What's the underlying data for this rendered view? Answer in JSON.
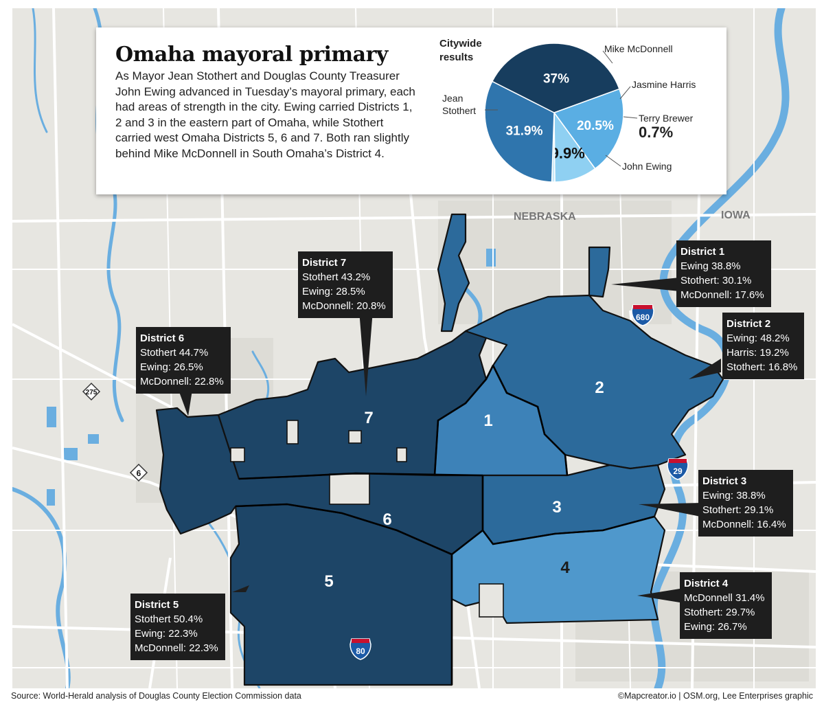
{
  "title": "Omaha mayoral primary",
  "intro": "As Mayor Jean Stothert and Douglas County Treasurer John Ewing advanced in Tuesday’s mayoral primary, each had areas of strength in the city. Ewing carried Districts 1, 2 and 3 in the eastern part of Omaha, while Stothert carried west Omaha Districts 5, 6 and 7. Both ran slightly behind Mike McDonnell in South Omaha’s District 4.",
  "pie": {
    "heading_line1": "Citywide",
    "heading_line2": "results",
    "slices": [
      {
        "name": "Mike McDonnell",
        "value": 20.5,
        "label": "20.5%",
        "color": "#5aaee3"
      },
      {
        "name": "Jasmine Harris",
        "value": 9.9,
        "label": "9.9%",
        "color": "#8fd0f2"
      },
      {
        "name": "Terry Brewer",
        "value": 0.7,
        "label": "0.7%",
        "color": "#c8e8f8"
      },
      {
        "name": "John Ewing",
        "value": 31.9,
        "label": "31.9%",
        "color": "#2f75ad"
      },
      {
        "name": "Jean Stothert",
        "value": 37,
        "label": "37%",
        "color": "#173d5e"
      }
    ],
    "name_jean_line1": "Jean",
    "name_jean_line2": "Stothert"
  },
  "map_labels": {
    "state_nebraska": "NEBRASKA",
    "state_iowa": "IOWA",
    "hwy_680": "680",
    "hwy_275": "275",
    "hwy_6": "6",
    "hwy_29": "29",
    "hwy_80": "80"
  },
  "district_numbers": {
    "d1": "1",
    "d2": "2",
    "d3": "3",
    "d4": "4",
    "d5": "5",
    "d6": "6",
    "d7": "7"
  },
  "districts": {
    "d1": {
      "name": "District 1",
      "lines": [
        "Ewing 38.8%",
        "Stothert: 30.1%",
        "McDonnell: 17.6%"
      ]
    },
    "d2": {
      "name": "District 2",
      "lines": [
        "Ewing: 48.2%",
        "Harris: 19.2%",
        "Stothert: 16.8%"
      ]
    },
    "d3": {
      "name": "District 3",
      "lines": [
        "Ewing: 38.8%",
        "Stothert: 29.1%",
        "McDonnell: 16.4%"
      ]
    },
    "d4": {
      "name": "District 4",
      "lines": [
        "McDonnell 31.4%",
        "Stothert: 29.7%",
        "Ewing: 26.7%"
      ]
    },
    "d5": {
      "name": "District 5",
      "lines": [
        "Stothert 50.4%",
        "Ewing: 22.3%",
        "McDonnell: 22.3%"
      ]
    },
    "d6": {
      "name": "District 6",
      "lines": [
        "Stothert 44.7%",
        "Ewing: 26.5%",
        "McDonnell: 22.8%"
      ]
    },
    "d7": {
      "name": "District 7",
      "lines": [
        "Stothert 43.2%",
        "Ewing: 28.5%",
        "McDonnell: 20.8%"
      ]
    }
  },
  "colors": {
    "stothert_districts": "#1d4567",
    "ewing_districts": "#2c6a9b",
    "district_1": "#3d82b8",
    "district_4": "#4f98cc",
    "water": "#6aaee0",
    "land": "#e7e6e1",
    "roads": "#ffffff"
  },
  "footer": {
    "source": "Source: World-Herald analysis of Douglas County Election Commission data",
    "credit": "©Mapcreator.io | OSM.org, Lee Enterprises graphic"
  }
}
